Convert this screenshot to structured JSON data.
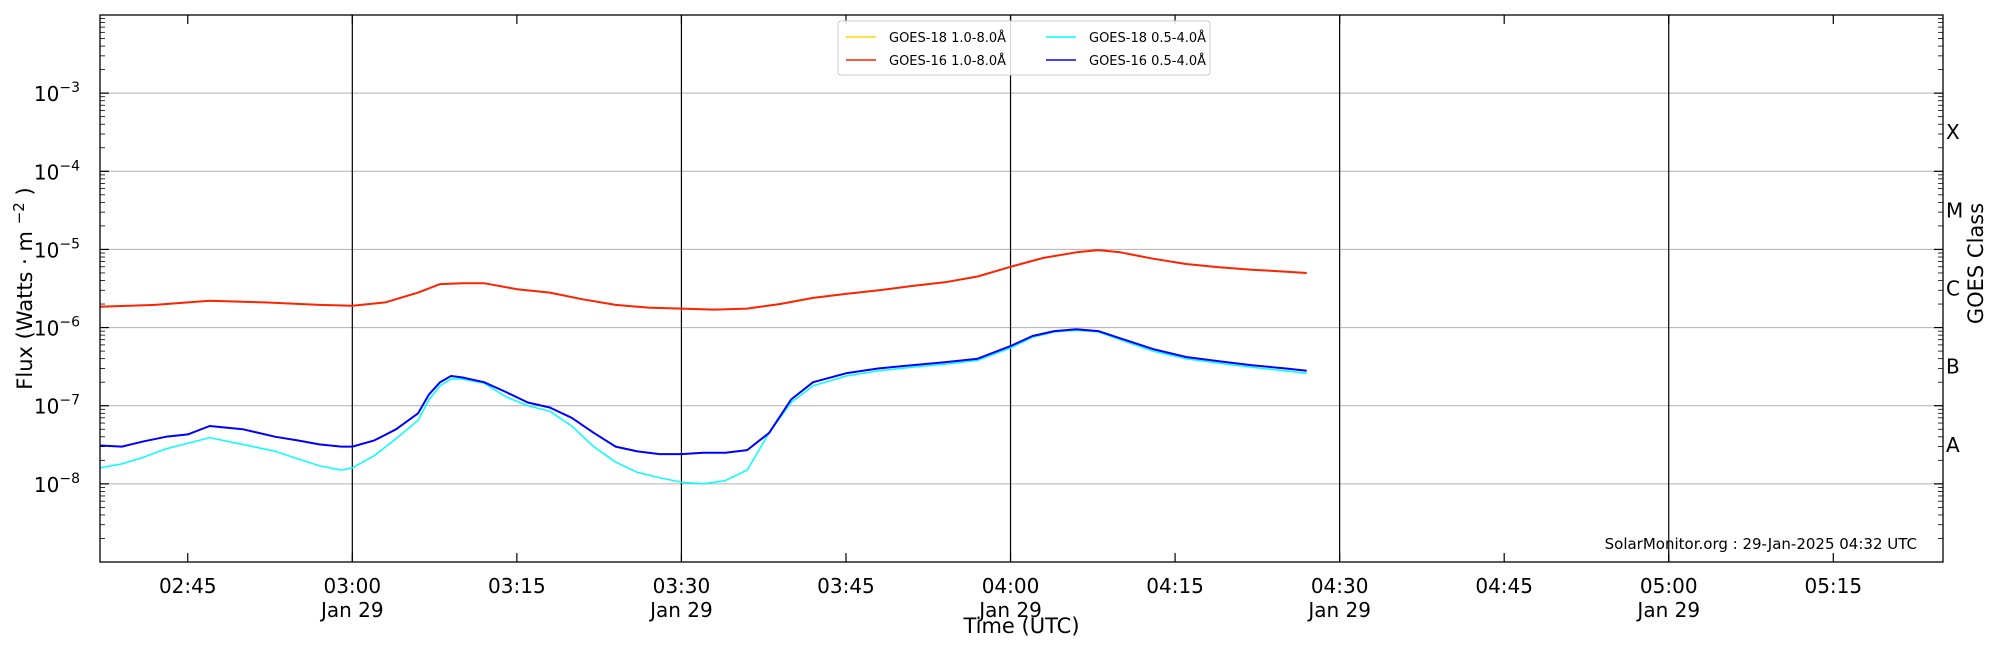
{
  "chart_data": {
    "type": "line",
    "xlabel": "Time (UTC)",
    "ylabel_main": "Flux (Watts",
    "ylabel_unit": "m",
    "ylabel_exp": "−2",
    "ylabel_close": ")",
    "right_label": "GOES Class",
    "credit": "SolarMonitor.org : 29-Jan-2025 04:32 UTC",
    "y_scale": "log",
    "ylim": [
      "1e-9",
      "1e-2"
    ],
    "xlim": [
      "02:37",
      "05:25"
    ],
    "grid": "horizontal",
    "legend_position": "top-center",
    "x_ticks": [
      {
        "t": "02:45",
        "label": "02:45",
        "date": ""
      },
      {
        "t": "03:00",
        "label": "03:00",
        "date": "Jan 29"
      },
      {
        "t": "03:15",
        "label": "03:15",
        "date": ""
      },
      {
        "t": "03:30",
        "label": "03:30",
        "date": "Jan 29"
      },
      {
        "t": "03:45",
        "label": "03:45",
        "date": ""
      },
      {
        "t": "04:00",
        "label": "04:00",
        "date": "Jan 29"
      },
      {
        "t": "04:15",
        "label": "04:15",
        "date": ""
      },
      {
        "t": "04:30",
        "label": "04:30",
        "date": "Jan 29"
      },
      {
        "t": "04:45",
        "label": "04:45",
        "date": ""
      },
      {
        "t": "05:00",
        "label": "05:00",
        "date": "Jan 29"
      },
      {
        "t": "05:15",
        "label": "05:15",
        "date": ""
      }
    ],
    "vlines": [
      "03:00",
      "03:30",
      "04:00",
      "04:30",
      "05:00"
    ],
    "y_ticks": [
      {
        "exp": -3,
        "label": "10",
        "sup": "−3"
      },
      {
        "exp": -4,
        "label": "10",
        "sup": "−4"
      },
      {
        "exp": -5,
        "label": "10",
        "sup": "−5"
      },
      {
        "exp": -6,
        "label": "10",
        "sup": "−6"
      },
      {
        "exp": -7,
        "label": "10",
        "sup": "−7"
      },
      {
        "exp": -8,
        "label": "10",
        "sup": "−8"
      }
    ],
    "classes": [
      {
        "label": "X",
        "exp": -3.5
      },
      {
        "label": "M",
        "exp": -4.5
      },
      {
        "label": "C",
        "exp": -5.5
      },
      {
        "label": "B",
        "exp": -6.5
      },
      {
        "label": "A",
        "exp": -7.5
      }
    ],
    "legend": [
      {
        "label": "GOES-18 1.0-8.0Å",
        "color": "#ffd700",
        "col": 0,
        "row": 0
      },
      {
        "label": "GOES-16 1.0-8.0Å",
        "color": "#ff2200",
        "col": 0,
        "row": 1
      },
      {
        "label": "GOES-18 0.5-4.0Å",
        "color": "#00ffff",
        "col": 1,
        "row": 0
      },
      {
        "label": "GOES-16 0.5-4.0Å",
        "color": "#0000ff",
        "col": 1,
        "row": 1
      }
    ],
    "series": [
      {
        "name": "GOES-18 1.0-8.0Å",
        "color": "#ffd700",
        "width": 1.5,
        "x": [
          "02:37",
          "02:42",
          "02:47",
          "02:52",
          "02:57",
          "03:00",
          "03:03",
          "03:06",
          "03:08",
          "03:10",
          "03:12",
          "03:15",
          "03:18",
          "03:21",
          "03:24",
          "03:27",
          "03:30",
          "03:33",
          "03:36",
          "03:39",
          "03:42",
          "03:45",
          "03:48",
          "03:51",
          "03:54",
          "03:57",
          "04:00",
          "04:03",
          "04:06",
          "04:08",
          "04:10",
          "04:13",
          "04:16",
          "04:19",
          "04:22",
          "04:25",
          "04:27"
        ],
        "y": [
          "1.85e-6",
          "1.95e-6",
          "2.2e-6",
          "2.1e-6",
          "1.95e-6",
          "1.9e-6",
          "2.1e-6",
          "2.8e-6",
          "3.6e-6",
          "3.7e-6",
          "3.7e-6",
          "3.1e-6",
          "2.8e-6",
          "2.3e-6",
          "1.95e-6",
          "1.8e-6",
          "1.75e-6",
          "1.7e-6",
          "1.75e-6",
          "2.0e-6",
          "2.4e-6",
          "2.7e-6",
          "3.0e-6",
          "3.4e-6",
          "3.8e-6",
          "4.5e-6",
          "6.0e-6",
          "7.8e-6",
          "9.2e-6",
          "9.8e-6",
          "9.2e-6",
          "7.6e-6",
          "6.5e-6",
          "5.9e-6",
          "5.5e-6",
          "5.2e-6",
          "5.0e-6"
        ]
      },
      {
        "name": "GOES-16 1.0-8.0Å",
        "color": "#ff2200",
        "width": 2,
        "x": [
          "02:37",
          "02:42",
          "02:47",
          "02:52",
          "02:57",
          "03:00",
          "03:03",
          "03:06",
          "03:08",
          "03:10",
          "03:12",
          "03:15",
          "03:18",
          "03:21",
          "03:24",
          "03:27",
          "03:30",
          "03:33",
          "03:36",
          "03:39",
          "03:42",
          "03:45",
          "03:48",
          "03:51",
          "03:54",
          "03:57",
          "04:00",
          "04:03",
          "04:06",
          "04:08",
          "04:10",
          "04:13",
          "04:16",
          "04:19",
          "04:22",
          "04:25",
          "04:27"
        ],
        "y": [
          "1.85e-6",
          "1.95e-6",
          "2.2e-6",
          "2.1e-6",
          "1.95e-6",
          "1.9e-6",
          "2.1e-6",
          "2.8e-6",
          "3.6e-6",
          "3.7e-6",
          "3.7e-6",
          "3.1e-6",
          "2.8e-6",
          "2.3e-6",
          "1.95e-6",
          "1.8e-6",
          "1.75e-6",
          "1.7e-6",
          "1.75e-6",
          "2.0e-6",
          "2.4e-6",
          "2.7e-6",
          "3.0e-6",
          "3.4e-6",
          "3.8e-6",
          "4.5e-6",
          "6.0e-6",
          "7.8e-6",
          "9.2e-6",
          "9.8e-6",
          "9.2e-6",
          "7.6e-6",
          "6.5e-6",
          "5.9e-6",
          "5.5e-6",
          "5.2e-6",
          "5.0e-6"
        ]
      },
      {
        "name": "GOES-18 0.5-4.0Å",
        "color": "#00ffff",
        "width": 1.5,
        "x": [
          "02:37",
          "02:39",
          "02:41",
          "02:43",
          "02:45",
          "02:47",
          "02:50",
          "02:53",
          "02:55",
          "02:57",
          "02:59",
          "03:00",
          "03:02",
          "03:04",
          "03:06",
          "03:07",
          "03:08",
          "03:09",
          "03:10",
          "03:12",
          "03:14",
          "03:16",
          "03:18",
          "03:20",
          "03:22",
          "03:24",
          "03:26",
          "03:28",
          "03:30",
          "03:32",
          "03:34",
          "03:36",
          "03:38",
          "03:40",
          "03:42",
          "03:45",
          "03:48",
          "03:51",
          "03:54",
          "03:57",
          "04:00",
          "04:02",
          "04:04",
          "04:06",
          "04:08",
          "04:10",
          "04:13",
          "04:16",
          "04:19",
          "04:22",
          "04:25",
          "04:27"
        ],
        "y": [
          "1.6e-8",
          "1.8e-8",
          "2.2e-8",
          "2.8e-8",
          "3.3e-8",
          "3.9e-8",
          "3.2e-8",
          "2.6e-8",
          "2.1e-8",
          "1.7e-8",
          "1.5e-8",
          "1.6e-8",
          "2.3e-8",
          "3.8e-8",
          "6.5e-8",
          "1.2e-7",
          "1.8e-7",
          "2.2e-7",
          "2.2e-7",
          "1.95e-7",
          "1.3e-7",
          "1.0e-7",
          "8.5e-8",
          "5.5e-8",
          "3.0e-8",
          "1.9e-8",
          "1.4e-8",
          "1.2e-8",
          "1.05e-8",
          "1.0e-8",
          "1.1e-8",
          "1.5e-8",
          "4.5e-8",
          "1.1e-7",
          "1.8e-7",
          "2.4e-7",
          "2.8e-7",
          "3.1e-7",
          "3.4e-7",
          "3.8e-7",
          "5.5e-7",
          "7.5e-7",
          "8.8e-7",
          "9.2e-7",
          "8.8e-7",
          "7.0e-7",
          "5.0e-7",
          "4.0e-7",
          "3.5e-7",
          "3.1e-7",
          "2.8e-7",
          "2.6e-7"
        ]
      },
      {
        "name": "GOES-16 0.5-4.0Å",
        "color": "#0000ff",
        "width": 2,
        "x": [
          "02:37",
          "02:39",
          "02:41",
          "02:43",
          "02:45",
          "02:47",
          "02:50",
          "02:53",
          "02:55",
          "02:57",
          "02:59",
          "03:00",
          "03:02",
          "03:04",
          "03:06",
          "03:07",
          "03:08",
          "03:09",
          "03:10",
          "03:12",
          "03:14",
          "03:16",
          "03:18",
          "03:20",
          "03:22",
          "03:24",
          "03:26",
          "03:28",
          "03:30",
          "03:32",
          "03:34",
          "03:36",
          "03:38",
          "03:40",
          "03:42",
          "03:45",
          "03:48",
          "03:51",
          "03:54",
          "03:57",
          "04:00",
          "04:02",
          "04:04",
          "04:06",
          "04:08",
          "04:10",
          "04:13",
          "04:16",
          "04:19",
          "04:22",
          "04:25",
          "04:27"
        ],
        "y": [
          "3.1e-8",
          "3.0e-8",
          "3.5e-8",
          "4.0e-8",
          "4.3e-8",
          "5.5e-8",
          "5.0e-8",
          "4.0e-8",
          "3.6e-8",
          "3.2e-8",
          "3.0e-8",
          "3.0e-8",
          "3.6e-8",
          "5.0e-8",
          "8.0e-8",
          "1.4e-7",
          "2.0e-7",
          "2.4e-7",
          "2.3e-7",
          "2.0e-7",
          "1.5e-7",
          "1.1e-7",
          "9.5e-8",
          "7.0e-8",
          "4.5e-8",
          "3.0e-8",
          "2.6e-8",
          "2.4e-8",
          "2.4e-8",
          "2.5e-8",
          "2.5e-8",
          "2.7e-8",
          "4.5e-8",
          "1.2e-7",
          "2.0e-7",
          "2.6e-7",
          "3.0e-7",
          "3.3e-7",
          "3.6e-7",
          "4.0e-7",
          "5.8e-7",
          "7.8e-7",
          "9.0e-7",
          "9.5e-7",
          "9.0e-7",
          "7.3e-7",
          "5.3e-7",
          "4.2e-7",
          "3.7e-7",
          "3.3e-7",
          "3.0e-7",
          "2.8e-7"
        ]
      }
    ]
  }
}
